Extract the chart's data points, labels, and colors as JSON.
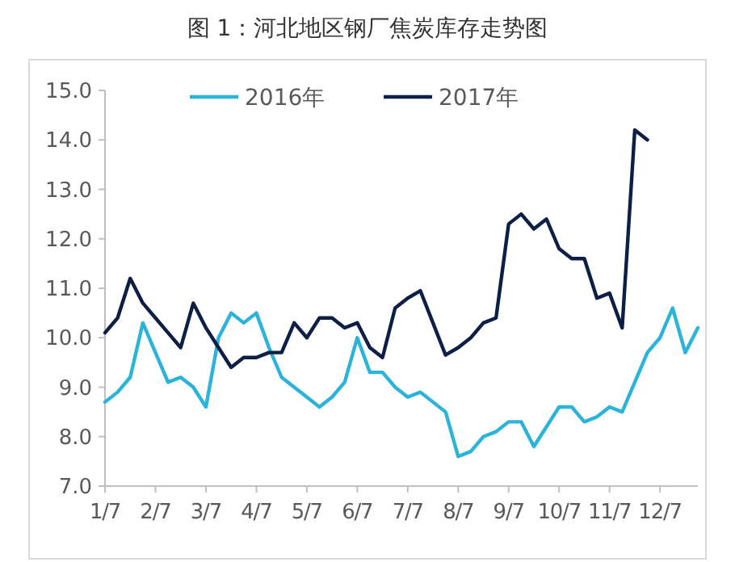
{
  "chart_data": {
    "type": "line",
    "title": "图 1：河北地区钢厂焦炭库存走势图",
    "categories": [
      "1/7",
      null,
      null,
      null,
      "2/7",
      null,
      null,
      null,
      "3/7",
      null,
      null,
      null,
      "4/7",
      null,
      null,
      null,
      "5/7",
      null,
      null,
      null,
      "6/7",
      null,
      null,
      null,
      "7/7",
      null,
      null,
      null,
      "8/7",
      null,
      null,
      null,
      "9/7",
      null,
      null,
      null,
      "10/7",
      null,
      null,
      null,
      "11/7",
      null,
      null,
      null,
      "12/7",
      null,
      null,
      null
    ],
    "series": [
      {
        "name": "2016年",
        "color": "#2bb3d9",
        "values": [
          8.7,
          8.9,
          9.2,
          10.3,
          9.7,
          9.1,
          9.2,
          9.0,
          8.6,
          10.0,
          10.5,
          10.3,
          10.5,
          9.8,
          9.2,
          9.0,
          8.8,
          8.6,
          8.8,
          9.1,
          10.0,
          9.3,
          9.3,
          9.0,
          8.8,
          8.9,
          8.7,
          8.5,
          7.6,
          7.7,
          8.0,
          8.1,
          8.3,
          8.3,
          7.8,
          8.2,
          8.6,
          8.6,
          8.3,
          8.4,
          8.6,
          8.5,
          9.1,
          9.7,
          10.0,
          10.6,
          9.7,
          10.2
        ]
      },
      {
        "name": "2017年",
        "color": "#0d1f45",
        "values": [
          10.1,
          10.4,
          11.2,
          10.7,
          10.4,
          10.1,
          9.8,
          10.7,
          10.2,
          9.8,
          9.4,
          9.6,
          9.6,
          9.7,
          9.7,
          10.3,
          10.0,
          10.4,
          10.4,
          10.2,
          10.3,
          9.8,
          9.6,
          10.6,
          10.8,
          10.95,
          10.3,
          9.65,
          9.8,
          10.0,
          10.3,
          10.4,
          12.3,
          12.5,
          12.2,
          12.4,
          11.8,
          11.6,
          11.6,
          10.8,
          10.9,
          10.2,
          14.2,
          14.0,
          null,
          null,
          null,
          null
        ]
      }
    ],
    "ylim": [
      7,
      15
    ],
    "yticks": [
      {
        "value": 7,
        "label": "7.0"
      },
      {
        "value": 8,
        "label": "8.0"
      },
      {
        "value": 9,
        "label": "9.0"
      },
      {
        "value": 10,
        "label": "10.0"
      },
      {
        "value": 11,
        "label": "11.0"
      },
      {
        "value": 12,
        "label": "12.0"
      },
      {
        "value": 13,
        "label": "13.0"
      },
      {
        "value": 14,
        "label": "14.0"
      },
      {
        "value": 15,
        "label": "15.0"
      }
    ],
    "legend": "top",
    "marker": "none",
    "line_style": "solid"
  }
}
